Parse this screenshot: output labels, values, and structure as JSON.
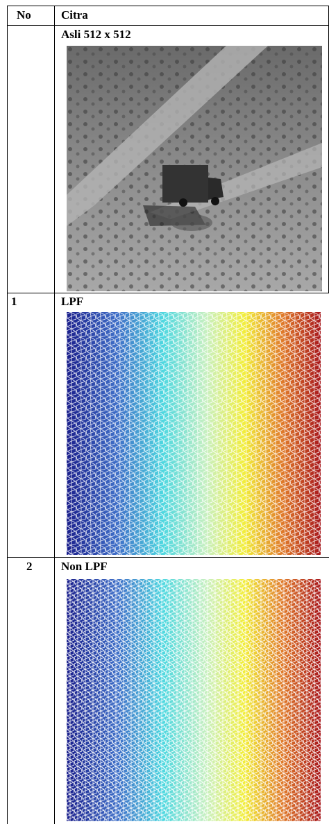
{
  "table": {
    "header": [
      "No",
      "Citra"
    ],
    "rows": [
      {
        "caption": "Asli 512 x 512"
      },
      {
        "no": "1",
        "caption": "LPF"
      },
      {
        "no": "2",
        "caption": "Non LPF"
      }
    ]
  }
}
